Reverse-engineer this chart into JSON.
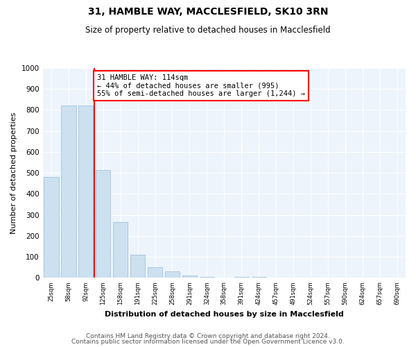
{
  "title1": "31, HAMBLE WAY, MACCLESFIELD, SK10 3RN",
  "title2": "Size of property relative to detached houses in Macclesfield",
  "xlabel": "Distribution of detached houses by size in Macclesfield",
  "ylabel": "Number of detached properties",
  "footer1": "Contains HM Land Registry data © Crown copyright and database right 2024.",
  "footer2": "Contains public sector information licensed under the Open Government Licence v3.0.",
  "annotation_line1": "31 HAMBLE WAY: 114sqm",
  "annotation_line2": "← 44% of detached houses are smaller (995)",
  "annotation_line3": "55% of semi-detached houses are larger (1,244) →",
  "bar_labels": [
    "25sqm",
    "58sqm",
    "92sqm",
    "125sqm",
    "158sqm",
    "191sqm",
    "225sqm",
    "258sqm",
    "291sqm",
    "324sqm",
    "358sqm",
    "391sqm",
    "424sqm",
    "457sqm",
    "491sqm",
    "524sqm",
    "557sqm",
    "590sqm",
    "624sqm",
    "657sqm",
    "690sqm"
  ],
  "bar_values": [
    480,
    820,
    820,
    515,
    265,
    110,
    50,
    30,
    10,
    5,
    3,
    5,
    5,
    3,
    2,
    1,
    1,
    1,
    0,
    0,
    0
  ],
  "bar_color": "#cce0f0",
  "bar_edge_color": "#a0c4e0",
  "red_line_x": 2.5,
  "ylim": [
    0,
    1000
  ],
  "yticks": [
    0,
    100,
    200,
    300,
    400,
    500,
    600,
    700,
    800,
    900,
    1000
  ],
  "bg_color": "#eef4fb",
  "title1_fontsize": 10,
  "title2_fontsize": 8.5,
  "xlabel_fontsize": 8,
  "ylabel_fontsize": 8,
  "annotation_fontsize": 7.5,
  "footer_fontsize": 6.5
}
